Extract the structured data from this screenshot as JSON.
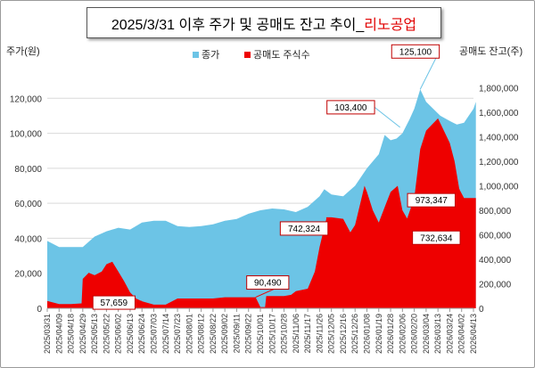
{
  "title": {
    "main": "2025/3/31 이후 주가 및 공매도 잔고 추이_",
    "suffix": "리노공업"
  },
  "y_left_title": "주가(원)",
  "y_right_title": "공매도 잔고(주)",
  "legend": [
    {
      "label": "종가",
      "color": "#6cc4e6"
    },
    {
      "label": "공매도 주식수",
      "color": "#ee0000"
    }
  ],
  "colors": {
    "price": "#6cc4e6",
    "short": "#ee0000",
    "grid": "#d9d9d9"
  },
  "chart_data": {
    "type": "area",
    "title": "2025/3/31 이후 주가 및 공매도 잔고 추이_리노공업",
    "xlabel": "",
    "y_left": {
      "label": "주가(원)",
      "lim": [
        0,
        140000
      ],
      "ticks": [
        0,
        20000,
        40000,
        60000,
        80000,
        100000,
        120000
      ]
    },
    "y_right": {
      "label": "공매도 잔고(주)",
      "lim": [
        0,
        2000000
      ],
      "ticks": [
        0,
        200000,
        400000,
        600000,
        800000,
        1000000,
        1200000,
        1400000,
        1600000,
        1800000
      ]
    },
    "x_ticks": [
      "2025/03/31",
      "2025/04/09",
      "2025/04/18",
      "2025/04/29",
      "2025/05/13",
      "2025/05/22",
      "2025/06/02",
      "2025/06/13",
      "2025/06/24",
      "2025/07/03",
      "2025/07/14",
      "2025/07/23",
      "2025/08/01",
      "2025/08/12",
      "2025/08/22",
      "2025/09/02",
      "2025/09/11",
      "2025/09/22",
      "2025/10/01",
      "2025/10/17",
      "2025/10/28",
      "2025/11/06",
      "2025/11/17",
      "2025/11/26",
      "2025/12/05",
      "2025/12/16",
      "2025/12/26",
      "2026/01/08",
      "2026/01/19",
      "2026/01/28",
      "2026/02/06",
      "2026/02/20",
      "2026/03/04",
      "2026/03/13",
      "2026/03/24",
      "2026/04/02",
      "2026/04/13"
    ],
    "grid": true,
    "legend_position": "top-center",
    "series": [
      {
        "name": "종가",
        "axis": "left",
        "color": "#6cc4e6",
        "points": [
          [
            0,
            38500
          ],
          [
            1,
            35000
          ],
          [
            3,
            35000
          ],
          [
            4,
            41000
          ],
          [
            5,
            44000
          ],
          [
            6,
            46000
          ],
          [
            7,
            45000
          ],
          [
            8,
            49000
          ],
          [
            9,
            50000
          ],
          [
            10,
            50000
          ],
          [
            11,
            47000
          ],
          [
            12,
            46500
          ],
          [
            13,
            47000
          ],
          [
            14,
            48000
          ],
          [
            15,
            50000
          ],
          [
            16,
            51000
          ],
          [
            17,
            54000
          ],
          [
            18,
            56000
          ],
          [
            19,
            57000
          ],
          [
            20,
            56500
          ],
          [
            21,
            55000
          ],
          [
            22,
            58000
          ],
          [
            23,
            64000
          ],
          [
            23.4,
            68000
          ],
          [
            24,
            65000
          ],
          [
            25,
            64000
          ],
          [
            26,
            70000
          ],
          [
            27,
            80000
          ],
          [
            28,
            88000
          ],
          [
            28.5,
            99000
          ],
          [
            29,
            96000
          ],
          [
            29.5,
            97000
          ],
          [
            30,
            100000
          ],
          [
            30.6,
            108000
          ],
          [
            31,
            114000
          ],
          [
            31.5,
            125100
          ],
          [
            32,
            118000
          ],
          [
            32.6,
            114000
          ],
          [
            33.2,
            110000
          ],
          [
            34,
            107000
          ],
          [
            34.6,
            105000
          ],
          [
            35.2,
            106000
          ],
          [
            35.6,
            110000
          ],
          [
            36,
            114000
          ],
          [
            36.2,
            118000
          ]
        ]
      },
      {
        "name": "공매도 주식수",
        "axis": "right",
        "color": "#ee0000",
        "points": [
          [
            0,
            60000
          ],
          [
            1,
            35000
          ],
          [
            2,
            35000
          ],
          [
            2.9,
            40000
          ],
          [
            3,
            240000
          ],
          [
            3.5,
            290000
          ],
          [
            4,
            270000
          ],
          [
            4.6,
            300000
          ],
          [
            5,
            360000
          ],
          [
            5.5,
            380000
          ],
          [
            6,
            300000
          ],
          [
            6.5,
            220000
          ],
          [
            7,
            130000
          ],
          [
            7.5,
            80000
          ],
          [
            8,
            57659
          ],
          [
            9,
            30000
          ],
          [
            10,
            30000
          ],
          [
            11,
            80000
          ],
          [
            12,
            80000
          ],
          [
            13,
            80000
          ],
          [
            14,
            80000
          ],
          [
            15,
            90000
          ],
          [
            16,
            90000
          ],
          [
            17,
            90000
          ],
          [
            17.6,
            90490
          ],
          [
            18,
            10000
          ],
          [
            18.4,
            10000
          ],
          [
            18.5,
            100000
          ],
          [
            19,
            100000
          ],
          [
            20,
            100000
          ],
          [
            20.6,
            110000
          ],
          [
            21,
            140000
          ],
          [
            22,
            160000
          ],
          [
            22.6,
            300000
          ],
          [
            23,
            500000
          ],
          [
            23.6,
            742324
          ],
          [
            24,
            742324
          ],
          [
            25,
            730000
          ],
          [
            25.6,
            620000
          ],
          [
            26,
            680000
          ],
          [
            26.3,
            800000
          ],
          [
            26.8,
            1000000
          ],
          [
            27,
            950000
          ],
          [
            27.5,
            800000
          ],
          [
            28,
            700000
          ],
          [
            28.6,
            850000
          ],
          [
            29,
            950000
          ],
          [
            29.6,
            1000000
          ],
          [
            30,
            800000
          ],
          [
            30.4,
            732634
          ],
          [
            31,
            900000
          ],
          [
            31.5,
            1300000
          ],
          [
            32,
            1450000
          ],
          [
            32.5,
            1500000
          ],
          [
            33,
            1550000
          ],
          [
            33.5,
            1450000
          ],
          [
            34,
            1350000
          ],
          [
            34.4,
            1200000
          ],
          [
            34.8,
            973347
          ],
          [
            35.2,
            900000
          ],
          [
            35.8,
            900000
          ],
          [
            36.2,
            900000
          ]
        ]
      }
    ],
    "callouts": [
      {
        "text": "125,100",
        "series": "종가",
        "x": 31.5,
        "y": 125100
      },
      {
        "text": "103,400",
        "series": "종가",
        "x": 29.8,
        "y": 103400
      },
      {
        "text": "742,324",
        "series": "공매도 주식수",
        "x": 23.6,
        "y": 742324
      },
      {
        "text": "973,347",
        "series": "공매도 주식수",
        "x": 34.8,
        "y": 973347
      },
      {
        "text": "732,634",
        "series": "공매도 주식수",
        "x": 30.4,
        "y": 732634
      },
      {
        "text": "90,490",
        "series": "공매도 주식수",
        "x": 17.6,
        "y": 90490
      },
      {
        "text": "57,659",
        "series": "공매도 주식수",
        "x": 8,
        "y": 57659
      }
    ]
  }
}
